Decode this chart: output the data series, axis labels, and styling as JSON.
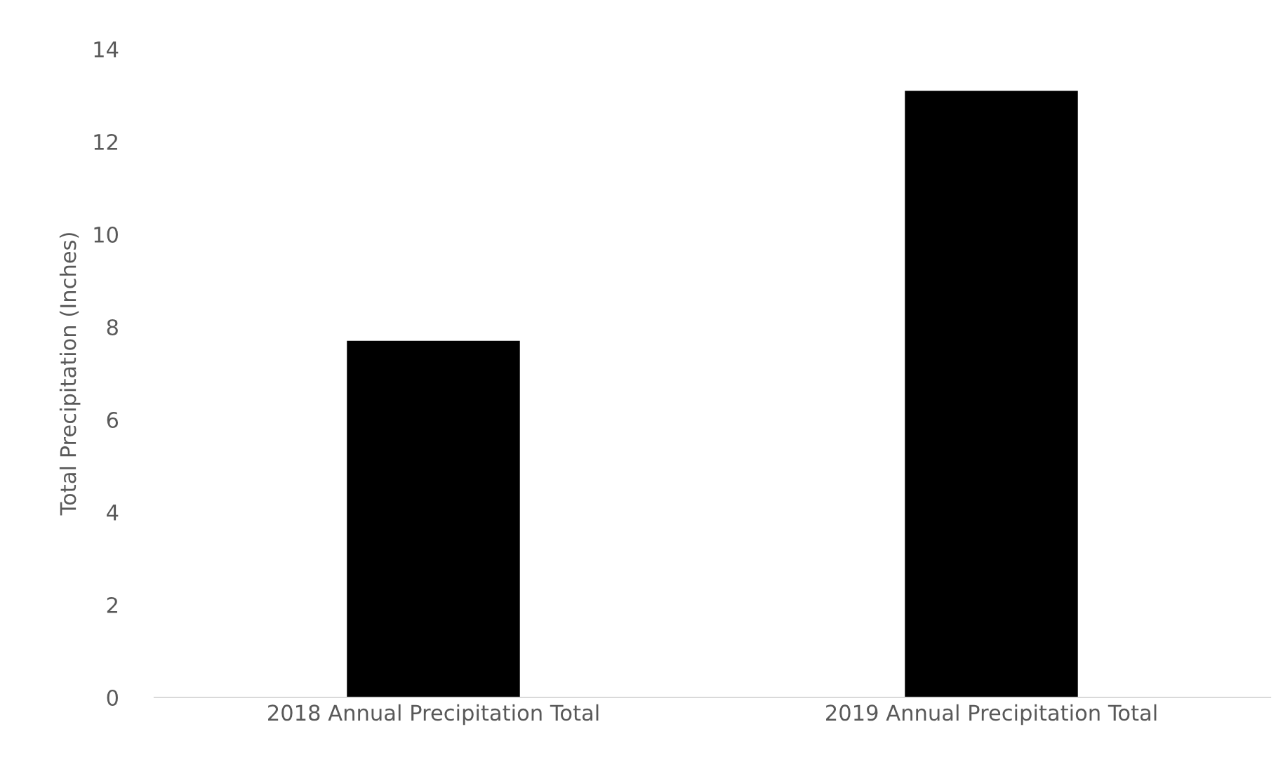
{
  "chart_data": {
    "type": "bar",
    "ylabel": "Total Precipitation (Inches)",
    "categories": [
      "2018 Annual Precipitation Total",
      "2019 Annual Precipitation Total"
    ],
    "values": [
      7.7,
      13.1
    ],
    "color": "#000000",
    "ylim": [
      0,
      14
    ],
    "yticks": [
      0,
      2,
      4,
      6,
      8,
      10,
      12,
      14
    ],
    "grid": false,
    "legend": false
  }
}
